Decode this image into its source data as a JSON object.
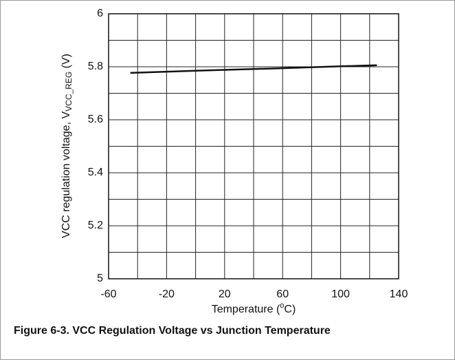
{
  "chart_data": {
    "type": "line",
    "caption": "Figure 6-3. VCC Regulation Voltage vs Junction Temperature",
    "x_label": [
      "Temperature (",
      "o",
      "C)"
    ],
    "y_label": [
      "VCC regulation voltage, V",
      "VCC_REG",
      " (V)"
    ],
    "x": [
      -45,
      0,
      50,
      125
    ],
    "series": [
      {
        "color": "#111111",
        "values": [
          5.777,
          5.785,
          5.793,
          5.806
        ]
      }
    ],
    "xlim": [
      -60,
      140
    ],
    "xticks": [
      -60,
      -20,
      20,
      60,
      100,
      140
    ],
    "xminor_ticks": [
      -40,
      0,
      40,
      80,
      120
    ],
    "ylim": [
      5,
      6
    ],
    "yticks": [
      5,
      5.2,
      5.4,
      5.6,
      5.8,
      6
    ],
    "yminor_ticks": [
      5.1,
      5.3,
      5.5,
      5.7,
      5.9
    ],
    "grid": true
  }
}
